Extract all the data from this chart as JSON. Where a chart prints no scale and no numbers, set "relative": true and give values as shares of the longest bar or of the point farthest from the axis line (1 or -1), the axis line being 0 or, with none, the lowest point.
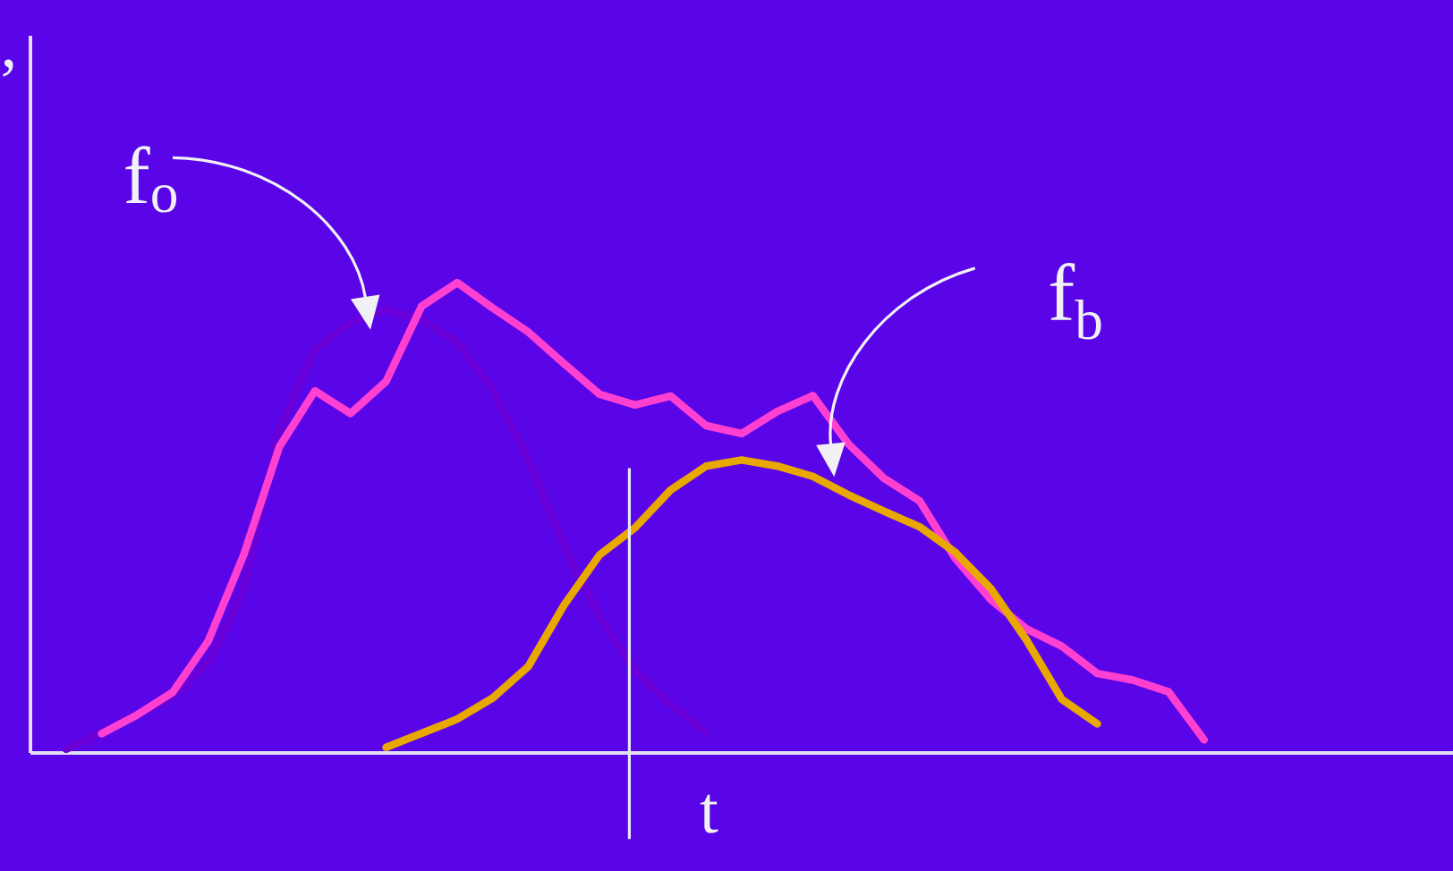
{
  "chart_data": {
    "type": "line",
    "relative": true,
    "xlabel": "t",
    "ylabel": ",",
    "tick_labels": false,
    "categories": [
      null,
      null,
      null,
      null,
      null,
      null,
      null,
      null,
      null,
      null,
      null,
      null,
      null,
      null,
      null,
      null,
      null,
      null,
      null,
      null,
      null,
      null,
      null,
      null,
      null,
      null,
      null,
      null,
      null,
      null,
      null,
      null,
      null
    ],
    "series": [
      {
        "color": "#6a00d8",
        "values": [
          0.008,
          0.044,
          0.081,
          0.119,
          0.192,
          0.347,
          0.688,
          0.857,
          0.916,
          0.943,
          0.921,
          0.874,
          0.773,
          0.625,
          0.44,
          0.29,
          0.175,
          0.104,
          0.045,
          null,
          null,
          null,
          null,
          null,
          null,
          null,
          null,
          null,
          null,
          null,
          null,
          null,
          null
        ]
      },
      {
        "color": "#ff40d0",
        "values": [
          null,
          0.041,
          0.081,
          0.129,
          0.238,
          0.422,
          0.651,
          0.77,
          0.722,
          0.79,
          0.95,
          1.0,
          0.946,
          0.895,
          0.828,
          0.763,
          0.74,
          0.759,
          0.696,
          0.679,
          0.726,
          0.76,
          0.657,
          0.584,
          0.536,
          0.414,
          0.326,
          0.264,
          0.227,
          0.169,
          0.155,
          0.13,
          0.028
        ]
      },
      {
        "color": "#e8a800",
        "values": [
          null,
          null,
          null,
          null,
          null,
          null,
          null,
          null,
          null,
          0.012,
          0.042,
          0.072,
          0.117,
          0.184,
          0.314,
          0.421,
          0.479,
          0.559,
          0.61,
          0.623,
          0.61,
          0.588,
          0.549,
          0.514,
          0.481,
          0.427,
          0.35,
          0.241,
          0.114,
          0.062,
          null,
          null,
          null
        ]
      }
    ],
    "annotations": [
      "f$_{o}$",
      "f$_{b}$"
    ]
  }
}
